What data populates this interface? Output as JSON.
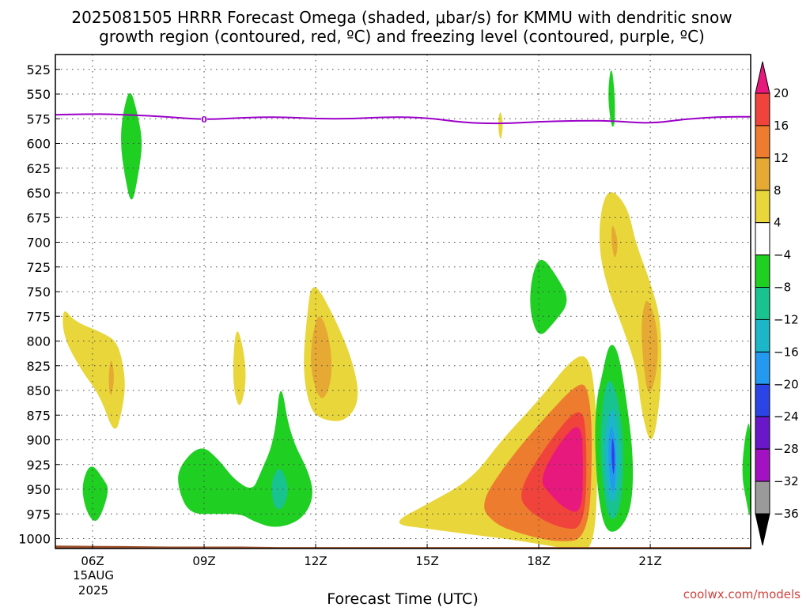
{
  "chart_data": {
    "type": "heatmap",
    "title_line1": "2025081505 HRRR Forecast Omega (shaded, μbar/s) for KMMU with dendritic snow",
    "title_line2": "growth region (contoured, red, ºC) and freezing level (contoured, purple, ºC)",
    "xlabel": "Forecast Time (UTC)",
    "x_ticks": [
      "06Z",
      "09Z",
      "12Z",
      "15Z",
      "18Z",
      "21Z"
    ],
    "x_date": [
      "15AUG",
      "2025"
    ],
    "x_range_hours": [
      5,
      23.7
    ],
    "y_ticks": [
      525,
      550,
      575,
      600,
      625,
      650,
      675,
      700,
      725,
      750,
      775,
      800,
      825,
      850,
      875,
      900,
      925,
      950,
      975,
      1000
    ],
    "y_range": [
      510,
      1010
    ],
    "grid": true,
    "colorbar": {
      "labels": [
        "20",
        "16",
        "12",
        "8",
        "4",
        "−4",
        "−8",
        "−12",
        "−16",
        "−20",
        "−24",
        "−28",
        "−32",
        "−36"
      ],
      "colors": [
        "#e8197d",
        "#f0433c",
        "#ee7c2e",
        "#e6a933",
        "#e8d63a",
        "#ffffff",
        "#1fcf22",
        "#19c38f",
        "#1bb6c8",
        "#2499f0",
        "#2a44e6",
        "#6a16c9",
        "#a312c2",
        "#9a9a9a",
        "#000000"
      ]
    },
    "freezing_level": {
      "label": "0",
      "color": "#9b00c8",
      "points": [
        [
          5,
          571
        ],
        [
          6,
          570
        ],
        [
          7,
          571
        ],
        [
          8,
          573
        ],
        [
          9,
          576
        ],
        [
          10,
          574
        ],
        [
          11,
          573
        ],
        [
          12,
          575
        ],
        [
          13,
          575
        ],
        [
          14,
          573
        ],
        [
          15,
          574
        ],
        [
          16,
          579
        ],
        [
          17,
          580
        ],
        [
          18,
          578
        ],
        [
          19,
          577
        ],
        [
          20,
          577
        ],
        [
          21,
          580
        ],
        [
          22,
          575
        ],
        [
          23,
          573
        ],
        [
          23.7,
          573
        ]
      ]
    },
    "regions": [
      {
        "color": "#1fcf22",
        "points": [
          [
            7.0,
            542
          ],
          [
            7.2,
            568
          ],
          [
            7.35,
            598
          ],
          [
            7.25,
            628
          ],
          [
            7.05,
            666
          ],
          [
            6.85,
            630
          ],
          [
            6.75,
            600
          ],
          [
            6.8,
            572
          ]
        ]
      },
      {
        "color": "#1fcf22",
        "points": [
          [
            19.95,
            518
          ],
          [
            20.05,
            550
          ],
          [
            20.05,
            582
          ],
          [
            19.95,
            584
          ],
          [
            19.85,
            550
          ]
        ]
      },
      {
        "color": "#e8d63a",
        "points": [
          [
            16.95,
            565
          ],
          [
            17.05,
            578
          ],
          [
            16.98,
            600
          ],
          [
            16.9,
            583
          ]
        ]
      },
      {
        "color": "#e8d63a",
        "points": [
          [
            5.2,
            765
          ],
          [
            5.5,
            780
          ],
          [
            6.3,
            792
          ],
          [
            6.7,
            802
          ],
          [
            6.9,
            840
          ],
          [
            6.8,
            870
          ],
          [
            6.6,
            897
          ],
          [
            6.2,
            855
          ],
          [
            5.7,
            830
          ],
          [
            5.2,
            795
          ]
        ]
      },
      {
        "color": "#e6a933",
        "points": [
          [
            6.5,
            814
          ],
          [
            6.6,
            838
          ],
          [
            6.48,
            860
          ],
          [
            6.42,
            838
          ]
        ]
      },
      {
        "color": "#e8d63a",
        "points": [
          [
            9.85,
            782
          ],
          [
            10.05,
            805
          ],
          [
            10.15,
            840
          ],
          [
            9.95,
            873
          ],
          [
            9.75,
            840
          ]
        ]
      },
      {
        "color": "#e8d63a",
        "points": [
          [
            11.9,
            735
          ],
          [
            12.5,
            775
          ],
          [
            13.0,
            820
          ],
          [
            13.2,
            860
          ],
          [
            12.8,
            882
          ],
          [
            12.2,
            880
          ],
          [
            11.85,
            870
          ],
          [
            11.65,
            830
          ],
          [
            11.75,
            780
          ]
        ]
      },
      {
        "color": "#e6a933",
        "points": [
          [
            12.1,
            768
          ],
          [
            12.4,
            800
          ],
          [
            12.45,
            840
          ],
          [
            12.15,
            865
          ],
          [
            11.85,
            830
          ],
          [
            11.9,
            795
          ]
        ]
      },
      {
        "color": "#1fcf22",
        "points": [
          [
            18.05,
            712
          ],
          [
            18.5,
            735
          ],
          [
            18.85,
            760
          ],
          [
            18.4,
            782
          ],
          [
            18.0,
            798
          ],
          [
            17.75,
            770
          ],
          [
            17.8,
            735
          ]
        ]
      },
      {
        "color": "#e8d63a",
        "points": [
          [
            19.95,
            645
          ],
          [
            20.4,
            665
          ],
          [
            20.6,
            700
          ],
          [
            21.0,
            740
          ],
          [
            21.3,
            780
          ],
          [
            21.3,
            850
          ],
          [
            21.05,
            912
          ],
          [
            20.75,
            870
          ],
          [
            20.65,
            830
          ],
          [
            20.3,
            790
          ],
          [
            19.8,
            742
          ],
          [
            19.6,
            700
          ],
          [
            19.7,
            660
          ]
        ]
      },
      {
        "color": "#e6a933",
        "points": [
          [
            19.97,
            678
          ],
          [
            20.15,
            700
          ],
          [
            20.05,
            720
          ],
          [
            19.95,
            700
          ]
        ]
      },
      {
        "color": "#e6a933",
        "points": [
          [
            20.9,
            752
          ],
          [
            21.2,
            785
          ],
          [
            21.2,
            830
          ],
          [
            20.95,
            860
          ],
          [
            20.8,
            820
          ],
          [
            20.75,
            780
          ]
        ]
      },
      {
        "color": "#e8d63a",
        "points": [
          [
            14.0,
            985
          ],
          [
            15.0,
            965
          ],
          [
            16.2,
            940
          ],
          [
            17.0,
            900
          ],
          [
            18.0,
            860
          ],
          [
            19.0,
            813
          ],
          [
            19.4,
            818
          ],
          [
            19.55,
            870
          ],
          [
            19.6,
            920
          ],
          [
            19.5,
            1010
          ],
          [
            19.0,
            1012
          ],
          [
            17.5,
            1002
          ],
          [
            16.0,
            995
          ],
          [
            15.0,
            990
          ]
        ]
      },
      {
        "color": "#ee7c2e",
        "points": [
          [
            16.4,
            965
          ],
          [
            17.2,
            920
          ],
          [
            18.1,
            880
          ],
          [
            19.1,
            840
          ],
          [
            19.35,
            850
          ],
          [
            19.45,
            900
          ],
          [
            19.35,
            1000
          ],
          [
            18.5,
            1004
          ],
          [
            17.5,
            995
          ],
          [
            16.8,
            985
          ]
        ]
      },
      {
        "color": "#f0433c",
        "points": [
          [
            17.4,
            955
          ],
          [
            18.2,
            905
          ],
          [
            19.15,
            862
          ],
          [
            19.3,
            900
          ],
          [
            19.25,
            990
          ],
          [
            18.6,
            990
          ],
          [
            17.8,
            975
          ]
        ]
      },
      {
        "color": "#e8197d",
        "points": [
          [
            18.0,
            940
          ],
          [
            18.6,
            900
          ],
          [
            19.15,
            880
          ],
          [
            19.2,
            930
          ],
          [
            19.15,
            975
          ],
          [
            18.7,
            970
          ],
          [
            18.3,
            955
          ]
        ]
      },
      {
        "color": "#1fcf22",
        "points": [
          [
            19.7,
            835
          ],
          [
            19.9,
            800
          ],
          [
            20.15,
            810
          ],
          [
            20.4,
            870
          ],
          [
            20.55,
            920
          ],
          [
            20.5,
            970
          ],
          [
            20.15,
            993
          ],
          [
            19.8,
            993
          ],
          [
            19.6,
            960
          ],
          [
            19.5,
            900
          ],
          [
            19.55,
            860
          ]
        ]
      },
      {
        "color": "#19c38f",
        "points": [
          [
            19.75,
            850
          ],
          [
            19.95,
            835
          ],
          [
            20.2,
            870
          ],
          [
            20.3,
            920
          ],
          [
            20.2,
            970
          ],
          [
            19.95,
            985
          ],
          [
            19.75,
            960
          ],
          [
            19.65,
            900
          ]
        ]
      },
      {
        "color": "#1bb6c8",
        "points": [
          [
            19.85,
            875
          ],
          [
            20.05,
            865
          ],
          [
            20.2,
            920
          ],
          [
            20.05,
            965
          ],
          [
            19.85,
            960
          ],
          [
            19.75,
            910
          ]
        ]
      },
      {
        "color": "#2499f0",
        "points": [
          [
            19.95,
            880
          ],
          [
            20.1,
            910
          ],
          [
            20.05,
            950
          ],
          [
            19.95,
            955
          ],
          [
            19.85,
            910
          ]
        ]
      },
      {
        "color": "#2a44e6",
        "points": [
          [
            19.98,
            892
          ],
          [
            20.05,
            915
          ],
          [
            20.02,
            940
          ],
          [
            19.95,
            920
          ]
        ]
      },
      {
        "color": "#1fcf22",
        "points": [
          [
            5.95,
            922
          ],
          [
            6.3,
            940
          ],
          [
            6.45,
            950
          ],
          [
            6.25,
            975
          ],
          [
            6.05,
            985
          ],
          [
            5.8,
            970
          ],
          [
            5.7,
            945
          ]
        ]
      },
      {
        "color": "#1fcf22",
        "points": [
          [
            8.3,
            928
          ],
          [
            8.9,
            904
          ],
          [
            9.4,
            920
          ],
          [
            9.8,
            940
          ],
          [
            10.3,
            952
          ],
          [
            10.5,
            935
          ],
          [
            10.9,
            900
          ],
          [
            11.05,
            835
          ],
          [
            11.3,
            895
          ],
          [
            11.85,
            935
          ],
          [
            11.95,
            960
          ],
          [
            11.6,
            982
          ],
          [
            10.9,
            990
          ],
          [
            10.3,
            982
          ],
          [
            10.0,
            975
          ],
          [
            9.3,
            975
          ],
          [
            8.6,
            975
          ],
          [
            8.3,
            950
          ]
        ]
      },
      {
        "color": "#19c38f",
        "points": [
          [
            10.8,
            940
          ],
          [
            11.05,
            925
          ],
          [
            11.3,
            950
          ],
          [
            11.1,
            972
          ],
          [
            10.85,
            968
          ]
        ]
      },
      {
        "color": "#1fcf22",
        "points": [
          [
            23.7,
            875
          ],
          [
            23.7,
            985
          ],
          [
            23.6,
            965
          ],
          [
            23.45,
            935
          ],
          [
            23.55,
            895
          ]
        ]
      }
    ],
    "terrain": {
      "color": "#a0522d",
      "points": [
        [
          5,
          1007
        ],
        [
          6.8,
          1007.5
        ],
        [
          8,
          1008
        ],
        [
          10,
          1008
        ],
        [
          11,
          1008.5
        ],
        [
          14,
          1008.5
        ],
        [
          23.7,
          1008.5
        ]
      ]
    },
    "credit": "coolwx.com/models"
  }
}
